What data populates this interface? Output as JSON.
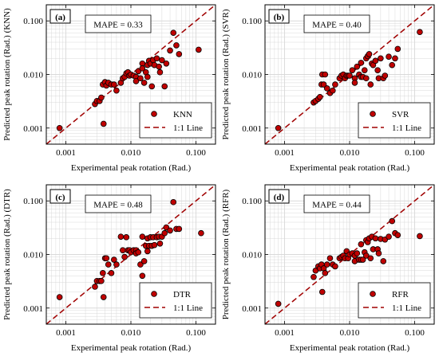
{
  "colors": {
    "marker_fill": "#c00000",
    "marker_edge": "#000000",
    "identity_line": "#a00000",
    "grid": "#d9d9d9",
    "plot_bg": "#ffffff"
  },
  "chart_data": [
    {
      "type": "scatter",
      "panel": "(a)",
      "mape": "MAPE = 0.33",
      "xlabel": "Experimental peak rotation (Rad.)",
      "ylabel": "Predicted peak rotation (Rad.) (KNN)",
      "xscale": "log",
      "yscale": "log",
      "xlim": [
        0.0005,
        0.2
      ],
      "ylim": [
        0.0005,
        0.2
      ],
      "xticks": [
        "0.001",
        "0.010",
        "0.100"
      ],
      "yticks": [
        "0.001",
        "0.010",
        "0.100"
      ],
      "grid": true,
      "legend_position": "bottom-right",
      "series": [
        {
          "name": "KNN",
          "kind": "markers",
          "x": [
            0.0008,
            0.0028,
            0.003,
            0.0033,
            0.0035,
            0.0037,
            0.0038,
            0.004,
            0.0042,
            0.0045,
            0.005,
            0.0055,
            0.006,
            0.007,
            0.0075,
            0.008,
            0.0085,
            0.009,
            0.0095,
            0.01,
            0.011,
            0.012,
            0.012,
            0.013,
            0.014,
            0.015,
            0.015,
            0.016,
            0.017,
            0.018,
            0.018,
            0.019,
            0.02,
            0.021,
            0.022,
            0.023,
            0.025,
            0.027,
            0.028,
            0.03,
            0.033,
            0.035,
            0.04,
            0.045,
            0.05,
            0.055,
            0.11
          ],
          "y": [
            0.001,
            0.0028,
            0.0032,
            0.0032,
            0.0037,
            0.0065,
            0.0012,
            0.0072,
            0.0062,
            0.007,
            0.0065,
            0.0065,
            0.005,
            0.007,
            0.0085,
            0.009,
            0.0105,
            0.011,
            0.0095,
            0.01,
            0.0095,
            0.009,
            0.0075,
            0.0115,
            0.0085,
            0.016,
            0.013,
            0.007,
            0.011,
            0.015,
            0.009,
            0.018,
            0.016,
            0.006,
            0.0185,
            0.015,
            0.02,
            0.014,
            0.011,
            0.0185,
            0.006,
            0.016,
            0.028,
            0.06,
            0.035,
            0.024,
            0.029
          ]
        },
        {
          "name": "1:1 Line",
          "kind": "line",
          "x": [
            0.0005,
            0.2
          ],
          "y": [
            0.0005,
            0.2
          ]
        }
      ]
    },
    {
      "type": "scatter",
      "panel": "(b)",
      "mape": "MAPE = 0.40",
      "xlabel": "Experimental peak rotation (Rad.)",
      "ylabel": "Predicted peak rotation (Rad.) (SVR)",
      "xscale": "log",
      "yscale": "log",
      "xlim": [
        0.0005,
        0.2
      ],
      "ylim": [
        0.0005,
        0.2
      ],
      "xticks": [
        "0.001",
        "0.010",
        "0.100"
      ],
      "yticks": [
        "0.001",
        "0.010",
        "0.100"
      ],
      "grid": true,
      "legend_position": "bottom-right",
      "series": [
        {
          "name": "SVR",
          "kind": "markers",
          "x": [
            0.0008,
            0.0028,
            0.003,
            0.0033,
            0.0035,
            0.0037,
            0.0038,
            0.004,
            0.0042,
            0.0045,
            0.005,
            0.0055,
            0.006,
            0.007,
            0.0075,
            0.008,
            0.0085,
            0.009,
            0.0095,
            0.01,
            0.011,
            0.012,
            0.012,
            0.013,
            0.014,
            0.015,
            0.015,
            0.016,
            0.017,
            0.018,
            0.018,
            0.019,
            0.02,
            0.021,
            0.022,
            0.023,
            0.025,
            0.027,
            0.028,
            0.03,
            0.033,
            0.035,
            0.04,
            0.045,
            0.05,
            0.055,
            0.12
          ],
          "y": [
            0.001,
            0.003,
            0.0032,
            0.0035,
            0.0038,
            0.0065,
            0.01,
            0.0065,
            0.01,
            0.0055,
            0.0045,
            0.005,
            0.0065,
            0.0085,
            0.0095,
            0.01,
            0.0085,
            0.0095,
            0.0095,
            0.0095,
            0.012,
            0.0085,
            0.007,
            0.014,
            0.01,
            0.0165,
            0.009,
            0.009,
            0.012,
            0.02,
            0.0085,
            0.022,
            0.024,
            0.0065,
            0.016,
            0.015,
            0.018,
            0.012,
            0.0085,
            0.02,
            0.0085,
            0.0095,
            0.0215,
            0.015,
            0.02,
            0.03,
            0.062
          ]
        },
        {
          "name": "1:1 Line",
          "kind": "line",
          "x": [
            0.0005,
            0.2
          ],
          "y": [
            0.0005,
            0.2
          ]
        }
      ]
    },
    {
      "type": "scatter",
      "panel": "(c)",
      "mape": "MAPE = 0.48",
      "xlabel": "Experimental peak rotation (Rad.)",
      "ylabel": "Predicted peak rotation (Rad.) (DTR)",
      "xscale": "log",
      "yscale": "log",
      "xlim": [
        0.0005,
        0.2
      ],
      "ylim": [
        0.0005,
        0.2
      ],
      "xticks": [
        "0.001",
        "0.010",
        "0.100"
      ],
      "yticks": [
        "0.001",
        "0.010",
        "0.100"
      ],
      "grid": true,
      "legend_position": "bottom-right",
      "series": [
        {
          "name": "DTR",
          "kind": "markers",
          "x": [
            0.0008,
            0.0028,
            0.003,
            0.0033,
            0.0035,
            0.0037,
            0.0038,
            0.004,
            0.0042,
            0.0045,
            0.005,
            0.0055,
            0.006,
            0.007,
            0.0075,
            0.008,
            0.0085,
            0.009,
            0.0095,
            0.01,
            0.011,
            0.012,
            0.012,
            0.013,
            0.014,
            0.015,
            0.015,
            0.016,
            0.017,
            0.018,
            0.018,
            0.019,
            0.02,
            0.021,
            0.022,
            0.023,
            0.025,
            0.027,
            0.028,
            0.03,
            0.033,
            0.035,
            0.04,
            0.045,
            0.05,
            0.055,
            0.12
          ],
          "y": [
            0.0016,
            0.0025,
            0.0032,
            0.0032,
            0.0032,
            0.0045,
            0.0016,
            0.0085,
            0.0085,
            0.0065,
            0.0045,
            0.008,
            0.0065,
            0.0215,
            0.012,
            0.009,
            0.021,
            0.012,
            0.012,
            0.011,
            0.012,
            0.012,
            0.0105,
            0.011,
            0.0065,
            0.0215,
            0.004,
            0.0075,
            0.0145,
            0.02,
            0.0115,
            0.0145,
            0.021,
            0.0145,
            0.021,
            0.015,
            0.021,
            0.0215,
            0.016,
            0.0215,
            0.025,
            0.032,
            0.028,
            0.095,
            0.03,
            0.03,
            0.025
          ]
        },
        {
          "name": "1:1 Line",
          "kind": "line",
          "x": [
            0.0005,
            0.2
          ],
          "y": [
            0.0005,
            0.2
          ]
        }
      ]
    },
    {
      "type": "scatter",
      "panel": "(d)",
      "mape": "MAPE = 0.44",
      "xlabel": "Experimental peak rotation (Rad.)",
      "ylabel": "Predicted peak rotation (Rad.) (RFR)",
      "xscale": "log",
      "yscale": "log",
      "xlim": [
        0.0005,
        0.2
      ],
      "ylim": [
        0.0005,
        0.2
      ],
      "xticks": [
        "0.001",
        "0.010",
        "0.100"
      ],
      "yticks": [
        "0.001",
        "0.010",
        "0.100"
      ],
      "grid": true,
      "legend_position": "bottom-right",
      "series": [
        {
          "name": "RFR",
          "kind": "markers",
          "x": [
            0.0008,
            0.0028,
            0.003,
            0.0033,
            0.0035,
            0.0037,
            0.0038,
            0.004,
            0.0042,
            0.0045,
            0.005,
            0.0055,
            0.006,
            0.007,
            0.0075,
            0.008,
            0.0085,
            0.009,
            0.0095,
            0.01,
            0.011,
            0.012,
            0.012,
            0.013,
            0.014,
            0.015,
            0.015,
            0.016,
            0.017,
            0.018,
            0.018,
            0.019,
            0.02,
            0.021,
            0.022,
            0.023,
            0.025,
            0.027,
            0.028,
            0.03,
            0.033,
            0.035,
            0.04,
            0.045,
            0.05,
            0.055,
            0.12
          ],
          "y": [
            0.0012,
            0.0038,
            0.005,
            0.006,
            0.0055,
            0.0065,
            0.002,
            0.0055,
            0.0045,
            0.0065,
            0.0085,
            0.0065,
            0.006,
            0.0085,
            0.009,
            0.0095,
            0.0085,
            0.0115,
            0.0085,
            0.01,
            0.0105,
            0.0095,
            0.0075,
            0.0105,
            0.008,
            0.0155,
            0.008,
            0.008,
            0.011,
            0.0185,
            0.0095,
            0.017,
            0.02,
            0.0085,
            0.0215,
            0.0125,
            0.02,
            0.0125,
            0.0105,
            0.0195,
            0.0075,
            0.019,
            0.0215,
            0.042,
            0.025,
            0.023,
            0.022
          ]
        },
        {
          "name": "1:1 Line",
          "kind": "line",
          "x": [
            0.0005,
            0.2
          ],
          "y": [
            0.0005,
            0.2
          ]
        }
      ]
    }
  ]
}
